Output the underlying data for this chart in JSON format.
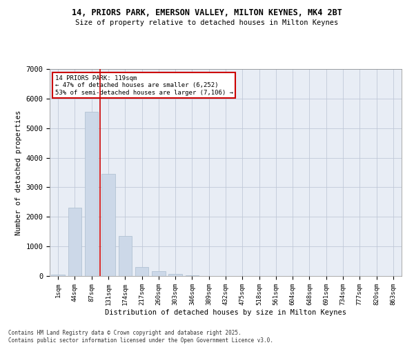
{
  "title_line1": "14, PRIORS PARK, EMERSON VALLEY, MILTON KEYNES, MK4 2BT",
  "title_line2": "Size of property relative to detached houses in Milton Keynes",
  "xlabel": "Distribution of detached houses by size in Milton Keynes",
  "ylabel": "Number of detached properties",
  "categories": [
    "1sqm",
    "44sqm",
    "87sqm",
    "131sqm",
    "174sqm",
    "217sqm",
    "260sqm",
    "303sqm",
    "346sqm",
    "389sqm",
    "432sqm",
    "475sqm",
    "518sqm",
    "561sqm",
    "604sqm",
    "648sqm",
    "691sqm",
    "734sqm",
    "777sqm",
    "820sqm",
    "863sqm"
  ],
  "values": [
    50,
    2300,
    5550,
    3450,
    1350,
    300,
    160,
    80,
    30,
    10,
    5,
    2,
    1,
    0,
    0,
    0,
    0,
    0,
    0,
    0,
    0
  ],
  "bar_color": "#ccd8e8",
  "bar_edge_color": "#aabcce",
  "vline_color": "#cc0000",
  "vline_x": 2.5,
  "annotation_title": "14 PRIORS PARK: 119sqm",
  "annotation_line2": "← 47% of detached houses are smaller (6,252)",
  "annotation_line3": "53% of semi-detached houses are larger (7,106) →",
  "annotation_box_color": "#cc0000",
  "ylim": [
    0,
    7000
  ],
  "yticks": [
    0,
    1000,
    2000,
    3000,
    4000,
    5000,
    6000,
    7000
  ],
  "grid_color": "#c0c8d8",
  "bg_color": "#e8edf5",
  "footer_line1": "Contains HM Land Registry data © Crown copyright and database right 2025.",
  "footer_line2": "Contains public sector information licensed under the Open Government Licence v3.0."
}
